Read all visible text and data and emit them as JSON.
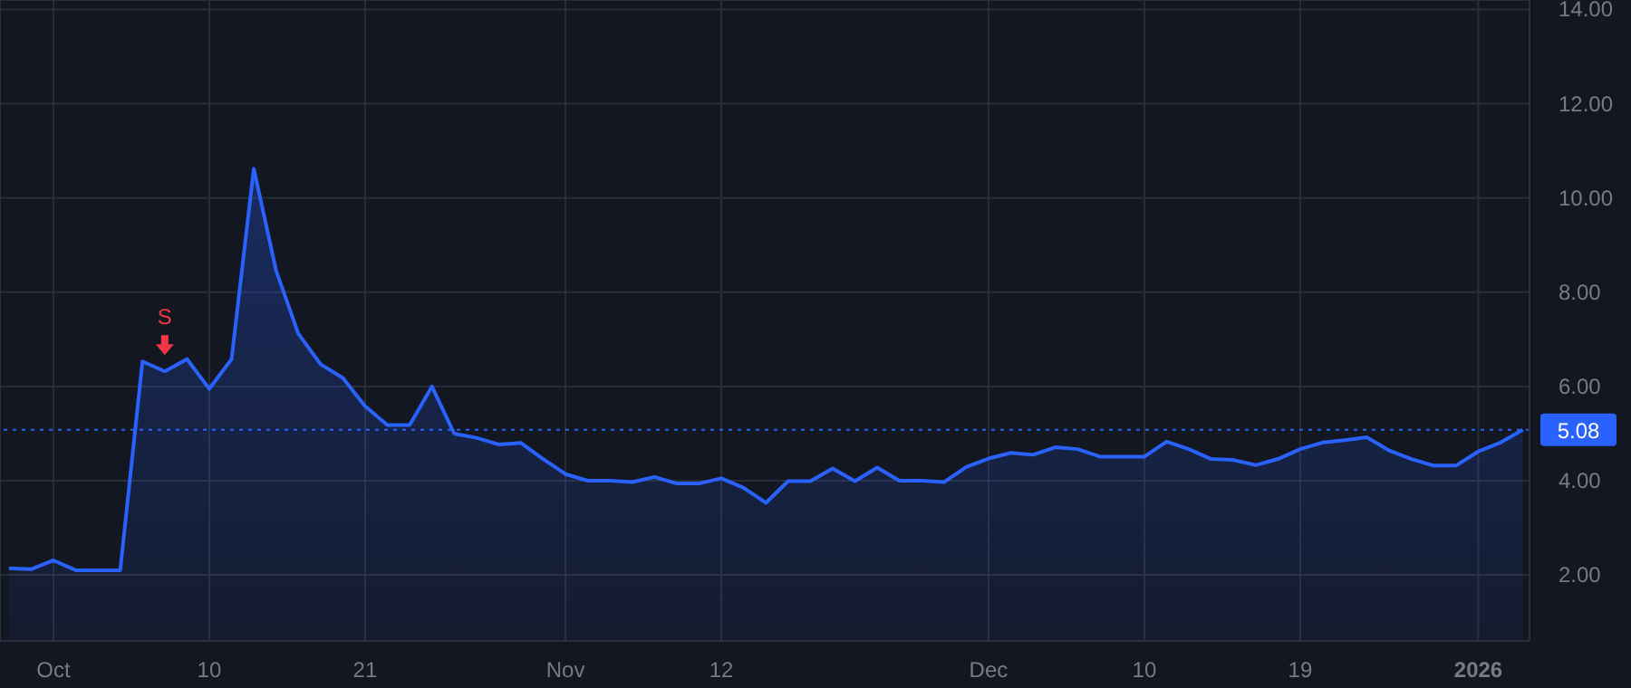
{
  "chart_data": {
    "type": "area",
    "categories": [
      null,
      null,
      "Oct",
      null,
      null,
      null,
      null,
      null,
      null,
      "10",
      null,
      null,
      null,
      null,
      null,
      null,
      "21",
      null,
      null,
      null,
      null,
      null,
      null,
      null,
      null,
      "Nov",
      null,
      null,
      null,
      null,
      null,
      null,
      "12",
      null,
      null,
      null,
      null,
      null,
      null,
      null,
      null,
      null,
      null,
      null,
      "Dec",
      null,
      null,
      null,
      null,
      null,
      null,
      "10",
      null,
      null,
      null,
      null,
      null,
      null,
      "19",
      null,
      null,
      null,
      null,
      null,
      null,
      null,
      "2026",
      null,
      null
    ],
    "series": [
      {
        "color": "#2962ff",
        "values": [
          2.14,
          2.12,
          2.31,
          2.1,
          2.1,
          2.1,
          6.53,
          6.32,
          6.58,
          5.95,
          6.58,
          10.62,
          8.46,
          7.12,
          6.47,
          6.18,
          5.58,
          5.18,
          5.18,
          6.0,
          5.0,
          4.91,
          4.77,
          4.8,
          4.46,
          4.14,
          4.0,
          4.0,
          3.97,
          4.08,
          3.94,
          3.94,
          4.05,
          3.85,
          3.53,
          3.99,
          3.99,
          4.26,
          3.99,
          4.28,
          4.0,
          4.0,
          3.97,
          4.29,
          4.47,
          4.59,
          4.55,
          4.71,
          4.67,
          4.51,
          4.51,
          4.51,
          4.83,
          4.67,
          4.46,
          4.44,
          4.33,
          4.46,
          4.67,
          4.81,
          4.86,
          4.92,
          4.64,
          4.46,
          4.32,
          4.32,
          4.62,
          4.81,
          5.08
        ]
      }
    ],
    "ylim": [
      0.6,
      14.2
    ],
    "yticks": [
      {
        "value": 2,
        "label": "2.00"
      },
      {
        "value": 4,
        "label": "4.00"
      },
      {
        "value": 6,
        "label": "6.00"
      },
      {
        "value": 8,
        "label": "8.00"
      },
      {
        "value": 10,
        "label": "10.00"
      },
      {
        "value": 12,
        "label": "12.00"
      },
      {
        "value": 14,
        "label": "14.00"
      }
    ],
    "ref_lines": [
      {
        "axis": "y",
        "value": 5.08,
        "label": "5.08",
        "color": "#2962ff",
        "line_style": "dotted"
      }
    ],
    "annotations": [
      {
        "text": "S",
        "y": 6.32
      }
    ],
    "grid": true
  }
}
